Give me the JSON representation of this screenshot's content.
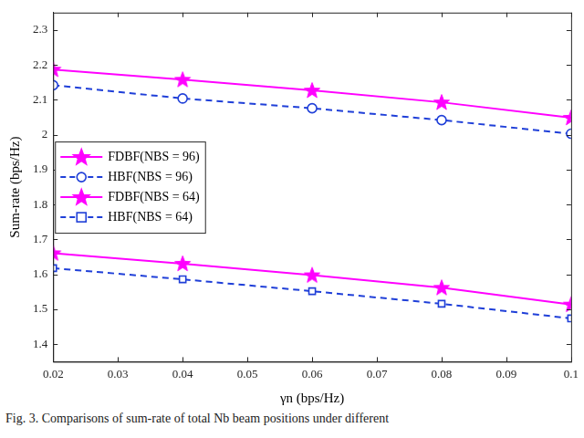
{
  "chart_data": {
    "type": "line",
    "caption": "Fig. 3. Comparisons of sum-rate of total Nb beam positions under different",
    "x_label": "γn (bps/Hz)",
    "y_label": "Sum-rate (bps/Hz)",
    "x": [
      0.02,
      0.04,
      0.06,
      0.08,
      0.1
    ],
    "xlim": [
      0.02,
      0.1
    ],
    "xticks": [
      0.02,
      0.03,
      0.04,
      0.05,
      0.06,
      0.07,
      0.08,
      0.09,
      0.1
    ],
    "ylim": [
      1.35,
      2.35
    ],
    "yticks": [
      1.4,
      1.5,
      1.6,
      1.7,
      1.8,
      1.9,
      2,
      2.1,
      2.2,
      2.3
    ],
    "grid": false,
    "legend": "left",
    "series": [
      {
        "name": "FDBF(NBS = 96)",
        "color": "#ff00ff",
        "marker": "star",
        "line_style": "solid",
        "values": [
          2.187,
          2.158,
          2.127,
          2.093,
          2.049
        ]
      },
      {
        "name": "HBF(NBS = 96)",
        "color": "#1f3fd8",
        "marker": "circle",
        "line_style": "dashed",
        "values": [
          2.142,
          2.104,
          2.076,
          2.042,
          2.003
        ]
      },
      {
        "name": "FDBF(NBS = 64)",
        "color": "#ff00ff",
        "marker": "star",
        "line_style": "solid",
        "values": [
          1.661,
          1.631,
          1.598,
          1.562,
          1.514
        ]
      },
      {
        "name": "HBF(NBS = 64)",
        "color": "#1f3fd8",
        "marker": "square",
        "line_style": "dashed",
        "values": [
          1.618,
          1.586,
          1.552,
          1.516,
          1.474
        ]
      }
    ]
  }
}
